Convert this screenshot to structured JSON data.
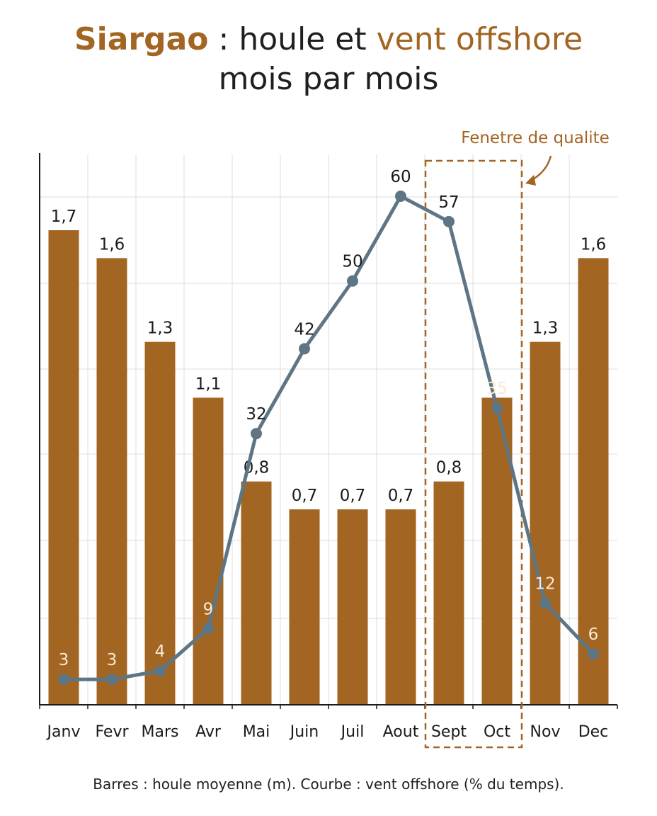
{
  "title": {
    "part1": "Siargao",
    "part2": " : houle et ",
    "part3": "vent offshore",
    "line2": "mois par mois"
  },
  "caption": "Barres : houle moyenne (m). Courbe : vent offshore (% du temps).",
  "annotation": "Fenetre de qualite",
  "colors": {
    "bar": "#a26522",
    "line": "#5e7585",
    "accent": "#a26522",
    "grid": "#dcdcdc",
    "axis": "#1a1a1a"
  },
  "chart_data": {
    "type": "bar",
    "categories": [
      "Janv",
      "Fevr",
      "Mars",
      "Avr",
      "Mai",
      "Juin",
      "Juil",
      "Aout",
      "Sept",
      "Oct",
      "Nov",
      "Dec"
    ],
    "series": [
      {
        "type": "bar",
        "axis": "left",
        "values": [
          1.7,
          1.6,
          1.3,
          1.1,
          0.8,
          0.7,
          0.7,
          0.7,
          0.8,
          1.1,
          1.3,
          1.6
        ],
        "labels": [
          "1,7",
          "1,6",
          "1,3",
          "1,1",
          "0,8",
          "0,7",
          "0,7",
          "0,7",
          "0,8",
          "",
          "1,3",
          "1,6"
        ]
      },
      {
        "type": "line",
        "axis": "right",
        "values": [
          3,
          3,
          4,
          9,
          32,
          42,
          50,
          60,
          57,
          35,
          12,
          6
        ],
        "labels": [
          "3",
          "3",
          "4",
          "9",
          "32",
          "42",
          "50",
          "60",
          "57",
          "35",
          "12",
          "6"
        ]
      }
    ],
    "ylim_bar": [
      0,
      1.7
    ],
    "ylim_line": [
      0,
      60
    ],
    "highlight": [
      "Sept",
      "Oct"
    ],
    "grid": true
  }
}
